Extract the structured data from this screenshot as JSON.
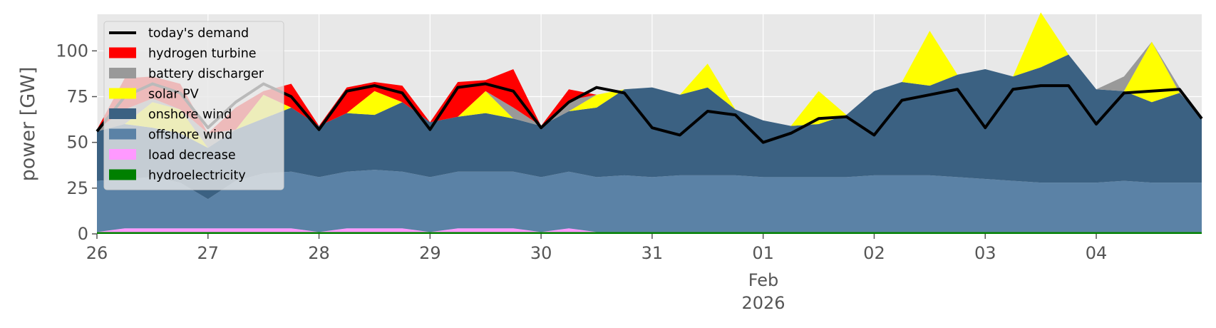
{
  "chart_data": {
    "type": "area",
    "title": "",
    "ylabel": "power [GW]",
    "xlabel": "",
    "ylim": [
      0,
      120
    ],
    "xlim": [
      0,
      9.95
    ],
    "x_unit": "days since Jan 26",
    "yticks": [
      0,
      25,
      50,
      75,
      100
    ],
    "xticks": [
      {
        "x": 0,
        "label": "26"
      },
      {
        "x": 1,
        "label": "27"
      },
      {
        "x": 2,
        "label": "28"
      },
      {
        "x": 3,
        "label": "29"
      },
      {
        "x": 4,
        "label": "30"
      },
      {
        "x": 5,
        "label": "31"
      },
      {
        "x": 6,
        "label": "01"
      },
      {
        "x": 7,
        "label": "02"
      },
      {
        "x": 8,
        "label": "03"
      },
      {
        "x": 9,
        "label": "04"
      }
    ],
    "xtick_sub": [
      "Feb",
      "2026"
    ],
    "grid": true,
    "legend": "upper-left",
    "x": [
      0,
      0.25,
      0.5,
      0.75,
      1,
      1.25,
      1.5,
      1.75,
      2,
      2.25,
      2.5,
      2.75,
      3,
      3.25,
      3.5,
      3.75,
      4,
      4.25,
      4.5,
      4.75,
      5,
      5.25,
      5.5,
      5.75,
      6,
      6.25,
      6.5,
      6.75,
      7,
      7.25,
      7.5,
      7.75,
      8,
      8.25,
      8.5,
      8.75,
      9,
      9.25,
      9.5,
      9.75,
      9.95
    ],
    "series": [
      {
        "name": "hydroelectricity",
        "color": "#008000",
        "values": [
          1,
          1,
          1,
          1,
          1,
          1,
          1,
          1,
          1,
          1,
          1,
          1,
          1,
          1,
          1,
          1,
          1,
          1,
          1,
          1,
          1,
          1,
          1,
          1,
          1,
          1,
          1,
          1,
          1,
          1,
          1,
          1,
          1,
          1,
          1,
          1,
          1,
          1,
          1,
          1,
          1
        ]
      },
      {
        "name": "load decrease",
        "color": "#ff99ff",
        "values": [
          0,
          2,
          2,
          2,
          2,
          2,
          2,
          2,
          0,
          2,
          2,
          2,
          0,
          2,
          2,
          2,
          0,
          2,
          0,
          0,
          0,
          0,
          0,
          0,
          0,
          0,
          0,
          0,
          0,
          0,
          0,
          0,
          0,
          0,
          0,
          0,
          0,
          0,
          0,
          0,
          0
        ]
      },
      {
        "name": "offshore wind",
        "color": "#5b82a6",
        "values": [
          28,
          27,
          28,
          25,
          16,
          26,
          30,
          31,
          30,
          31,
          32,
          31,
          30,
          31,
          31,
          31,
          30,
          31,
          30,
          31,
          30,
          31,
          31,
          31,
          30,
          30,
          30,
          30,
          31,
          31,
          31,
          30,
          29,
          28,
          27,
          27,
          27,
          28,
          27,
          27,
          27
        ]
      },
      {
        "name": "onshore wind",
        "color": "#3b6182",
        "values": [
          27,
          30,
          27,
          27,
          28,
          28,
          30,
          35,
          28,
          32,
          30,
          38,
          30,
          30,
          32,
          29,
          28,
          33,
          38,
          47,
          49,
          44,
          48,
          36,
          31,
          28,
          29,
          34,
          46,
          51,
          49,
          56,
          60,
          57,
          63,
          70,
          51,
          49,
          44,
          49,
          36
        ]
      },
      {
        "name": "solar PV",
        "color": "#ffff00",
        "values": [
          0,
          0,
          14,
          13,
          0,
          0,
          13,
          0,
          0,
          0,
          13,
          0,
          0,
          0,
          12,
          0,
          0,
          0,
          7,
          0,
          0,
          0,
          13,
          0,
          0,
          0,
          18,
          0,
          0,
          0,
          30,
          0,
          0,
          0,
          30,
          0,
          0,
          0,
          33,
          0,
          0
        ]
      },
      {
        "name": "battery discharger",
        "color": "#999999",
        "values": [
          1,
          8,
          2,
          0,
          8,
          0,
          0,
          0,
          0,
          0,
          0,
          0,
          0,
          0,
          0,
          6,
          0,
          6,
          0,
          0,
          0,
          0,
          0,
          0,
          0,
          0,
          0,
          0,
          0,
          0,
          0,
          0,
          0,
          0,
          0,
          0,
          0,
          8,
          0,
          3,
          0
        ]
      },
      {
        "name": "hydrogen turbine",
        "color": "#ff0000",
        "values": [
          0,
          17,
          12,
          14,
          0,
          12,
          2,
          13,
          0,
          14,
          5,
          9,
          0,
          19,
          6,
          21,
          0,
          6,
          0,
          0,
          0,
          0,
          0,
          0,
          0,
          0,
          0,
          0,
          0,
          0,
          0,
          0,
          0,
          0,
          0,
          0,
          0,
          0,
          0,
          0,
          0
        ]
      }
    ],
    "line": {
      "name": "today's demand",
      "color": "#000000",
      "values": [
        56,
        75,
        82,
        77,
        58,
        72,
        82,
        75,
        57,
        78,
        81,
        77,
        57,
        80,
        82,
        78,
        58,
        72,
        80,
        77,
        58,
        54,
        67,
        65,
        50,
        55,
        63,
        64,
        54,
        73,
        76,
        79,
        58,
        79,
        81,
        81,
        60,
        77,
        78,
        79,
        63
      ]
    },
    "legend_entries": [
      "today's demand",
      "hydrogen turbine",
      "battery discharger",
      "solar PV",
      "onshore wind",
      "offshore wind",
      "load decrease",
      "hydroelectricity"
    ]
  }
}
